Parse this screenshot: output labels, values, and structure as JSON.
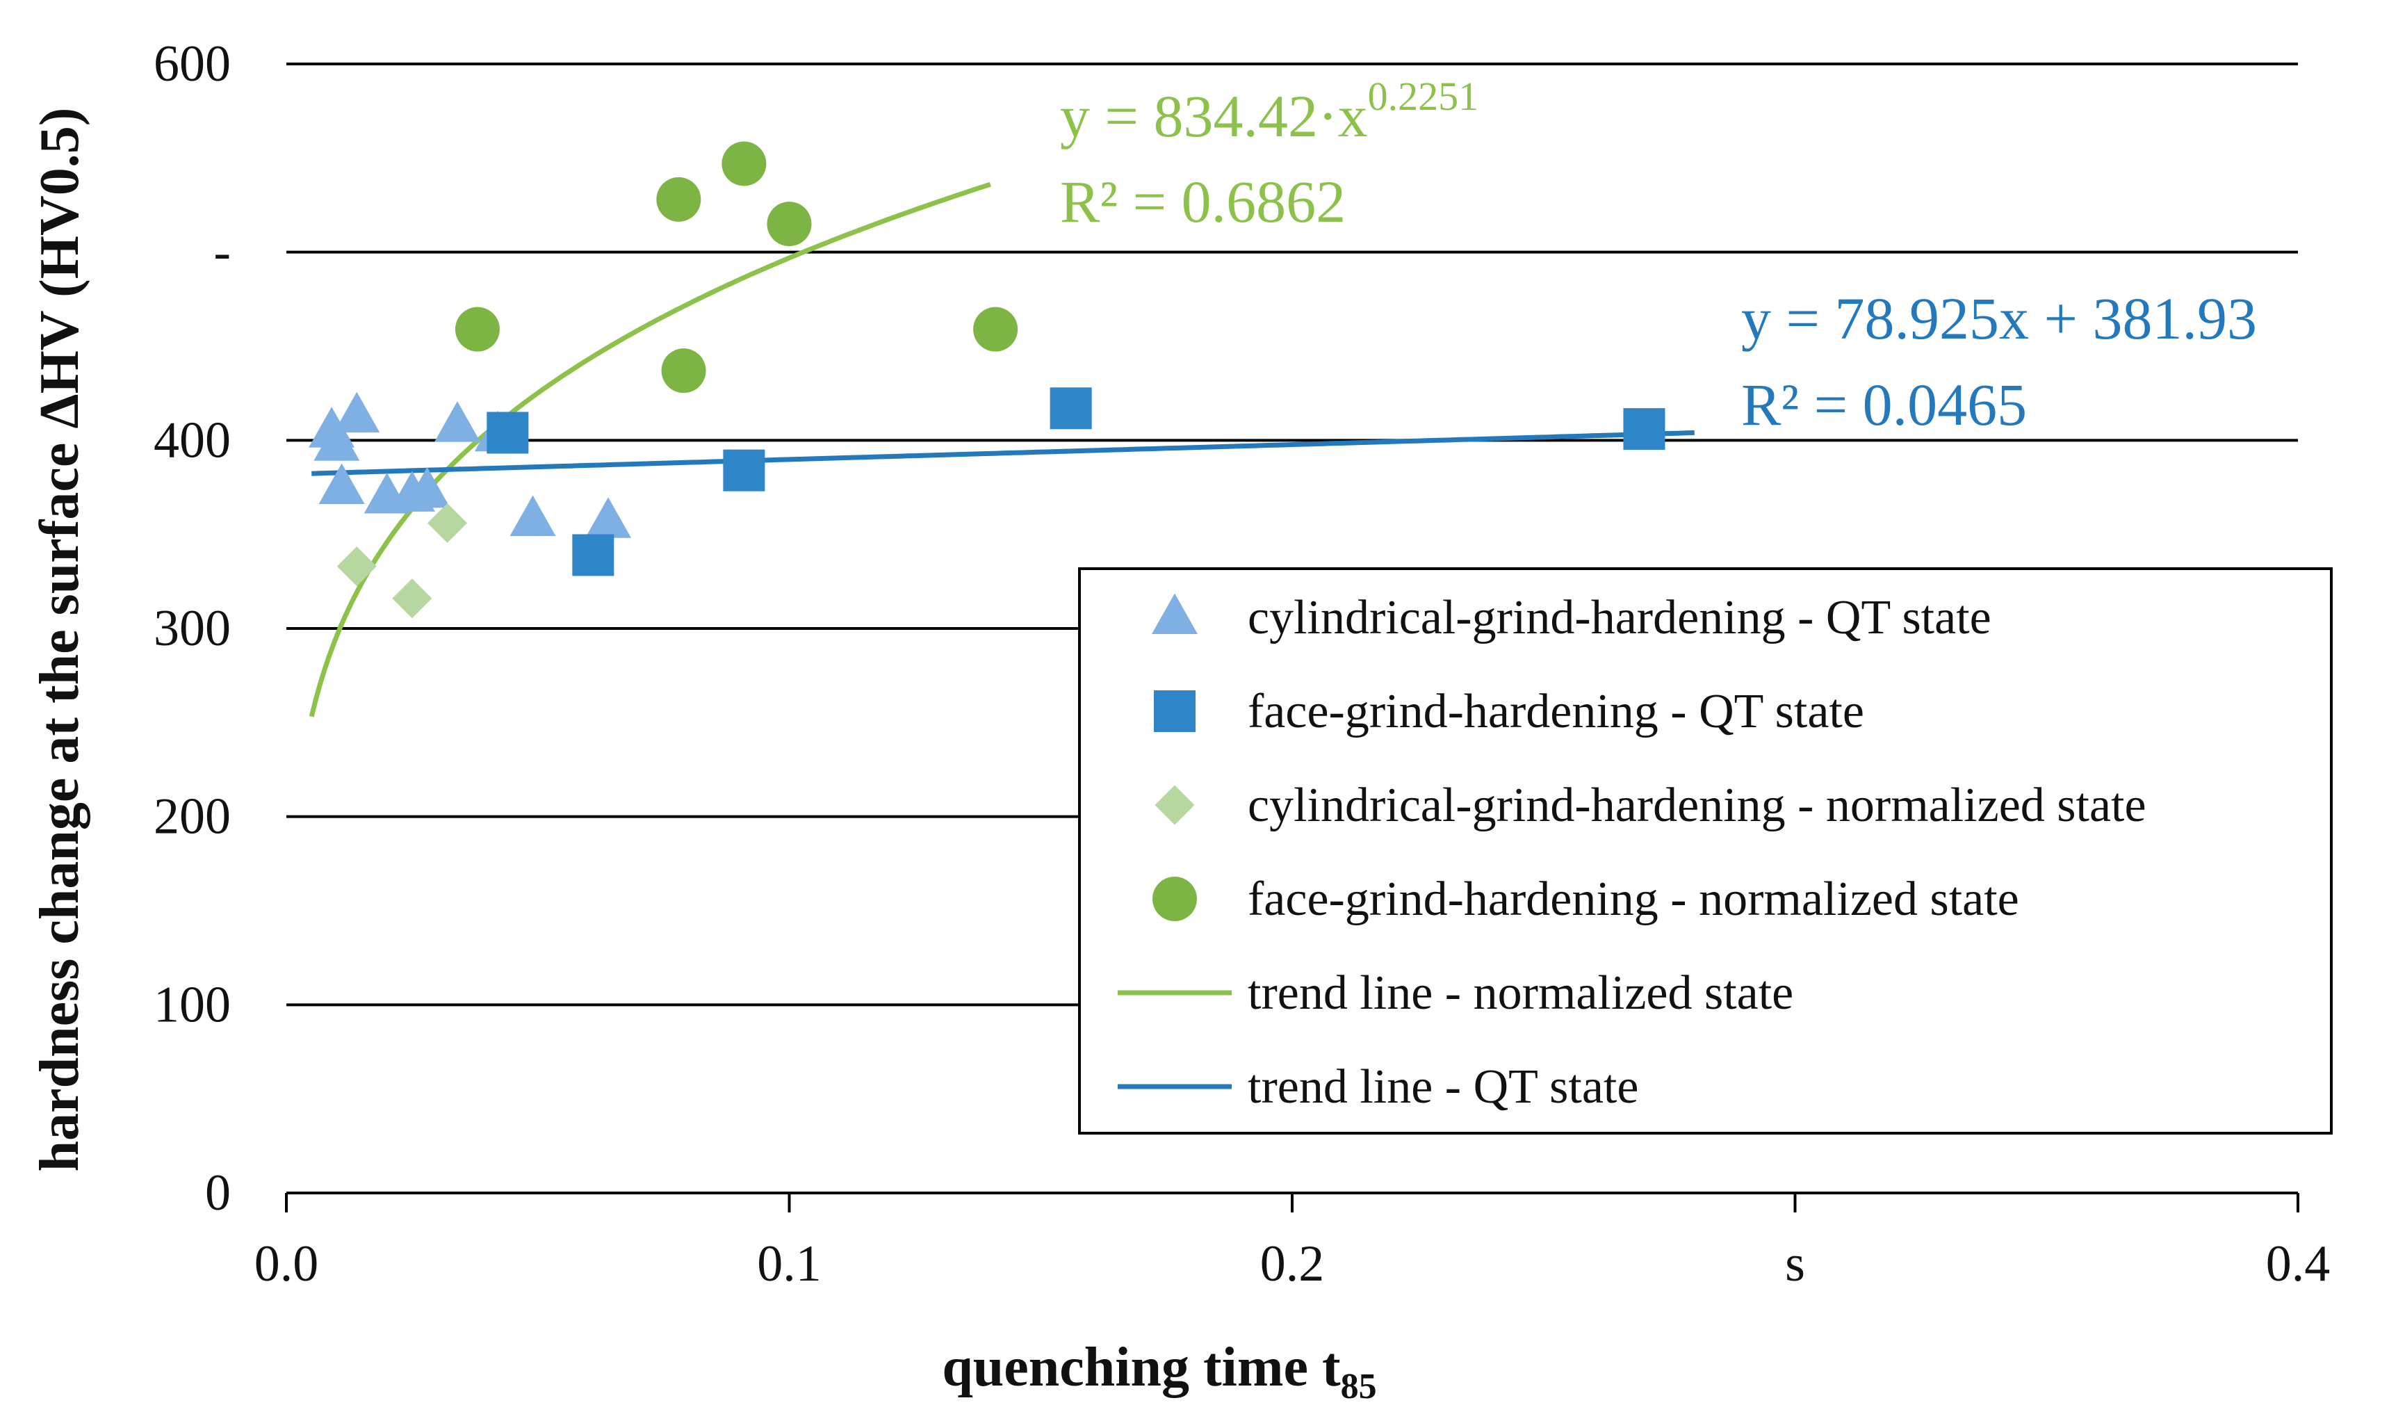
{
  "colors": {
    "qt_cyl": "#7fb0e3",
    "qt_face": "#2e86c9",
    "norm_cyl": "#b7d7a0",
    "norm_face": "#7db545",
    "trend_norm": "#8cc24a",
    "trend_qt": "#2479bd",
    "grid": "#000000"
  },
  "chart_data": {
    "type": "scatter",
    "xlabel": "quenching time t",
    "xlabel_sub": "85",
    "ylabel": "hardness change at the surface ΔHV (HV0.5)",
    "xlim": [
      0,
      0.4
    ],
    "ylim": [
      0,
      600
    ],
    "x_ticks": [
      {
        "value": 0.0,
        "label": "0.0"
      },
      {
        "value": 0.1,
        "label": "0.1"
      },
      {
        "value": 0.2,
        "label": "0.2"
      },
      {
        "value": 0.3,
        "label": "s"
      },
      {
        "value": 0.4,
        "label": "0.4"
      }
    ],
    "y_ticks": [
      {
        "value": 0,
        "label": "0"
      },
      {
        "value": 100,
        "label": "100"
      },
      {
        "value": 200,
        "label": "200"
      },
      {
        "value": 300,
        "label": "300"
      },
      {
        "value": 400,
        "label": "400"
      },
      {
        "value": 500,
        "label": "-"
      },
      {
        "value": 600,
        "label": "600"
      }
    ],
    "series": [
      {
        "name": "cylindrical-grind-hardening - QT state",
        "marker": "triangle",
        "color_key": "qt_cyl",
        "points": [
          [
            0.009,
            405
          ],
          [
            0.01,
            398
          ],
          [
            0.014,
            413
          ],
          [
            0.011,
            375
          ],
          [
            0.02,
            370
          ],
          [
            0.025,
            371
          ],
          [
            0.028,
            373
          ],
          [
            0.034,
            408
          ],
          [
            0.042,
            403
          ],
          [
            0.049,
            358
          ],
          [
            0.064,
            357
          ]
        ]
      },
      {
        "name": "face-grind-hardening - QT state",
        "marker": "square",
        "color_key": "qt_face",
        "points": [
          [
            0.044,
            404
          ],
          [
            0.061,
            339
          ],
          [
            0.091,
            384
          ],
          [
            0.156,
            417
          ],
          [
            0.27,
            406
          ]
        ]
      },
      {
        "name": "cylindrical-grind-hardening - normalized state",
        "marker": "diamond",
        "color_key": "norm_cyl",
        "points": [
          [
            0.014,
            333
          ],
          [
            0.025,
            316
          ],
          [
            0.032,
            356
          ]
        ]
      },
      {
        "name": "face-grind-hardening - normalized state",
        "marker": "circle",
        "color_key": "norm_face",
        "points": [
          [
            0.038,
            459
          ],
          [
            0.078,
            528
          ],
          [
            0.079,
            437
          ],
          [
            0.091,
            547
          ],
          [
            0.1,
            515
          ],
          [
            0.141,
            459
          ]
        ]
      }
    ],
    "trendlines": [
      {
        "name": "trend line - normalized state",
        "kind": "power",
        "a": 834.42,
        "b": 0.2251,
        "x_range": [
          0.005,
          0.14
        ],
        "color_key": "trend_norm",
        "equation": "y = 834.42·x",
        "exponent": "0.2251",
        "r2": "R² = 0.6862"
      },
      {
        "name": "trend line - QT state",
        "kind": "linear",
        "slope": 78.925,
        "intercept": 381.93,
        "x_range": [
          0.005,
          0.28
        ],
        "color_key": "trend_qt",
        "equation": "y = 78.925x + 381.93",
        "r2": "R² = 0.0465"
      }
    ],
    "legend": {
      "position": "bottom-right",
      "entries": [
        {
          "label": "cylindrical-grind-hardening - QT state",
          "marker": "triangle",
          "color_key": "qt_cyl"
        },
        {
          "label": "face-grind-hardening - QT state",
          "marker": "square",
          "color_key": "qt_face"
        },
        {
          "label": "cylindrical-grind-hardening - normalized state",
          "marker": "diamond",
          "color_key": "norm_cyl"
        },
        {
          "label": "face-grind-hardening - normalized state",
          "marker": "circle",
          "color_key": "norm_face"
        },
        {
          "label": "trend line - normalized state",
          "marker": "line",
          "color_key": "trend_norm"
        },
        {
          "label": "trend line - QT state",
          "marker": "line",
          "color_key": "trend_qt"
        }
      ]
    }
  }
}
